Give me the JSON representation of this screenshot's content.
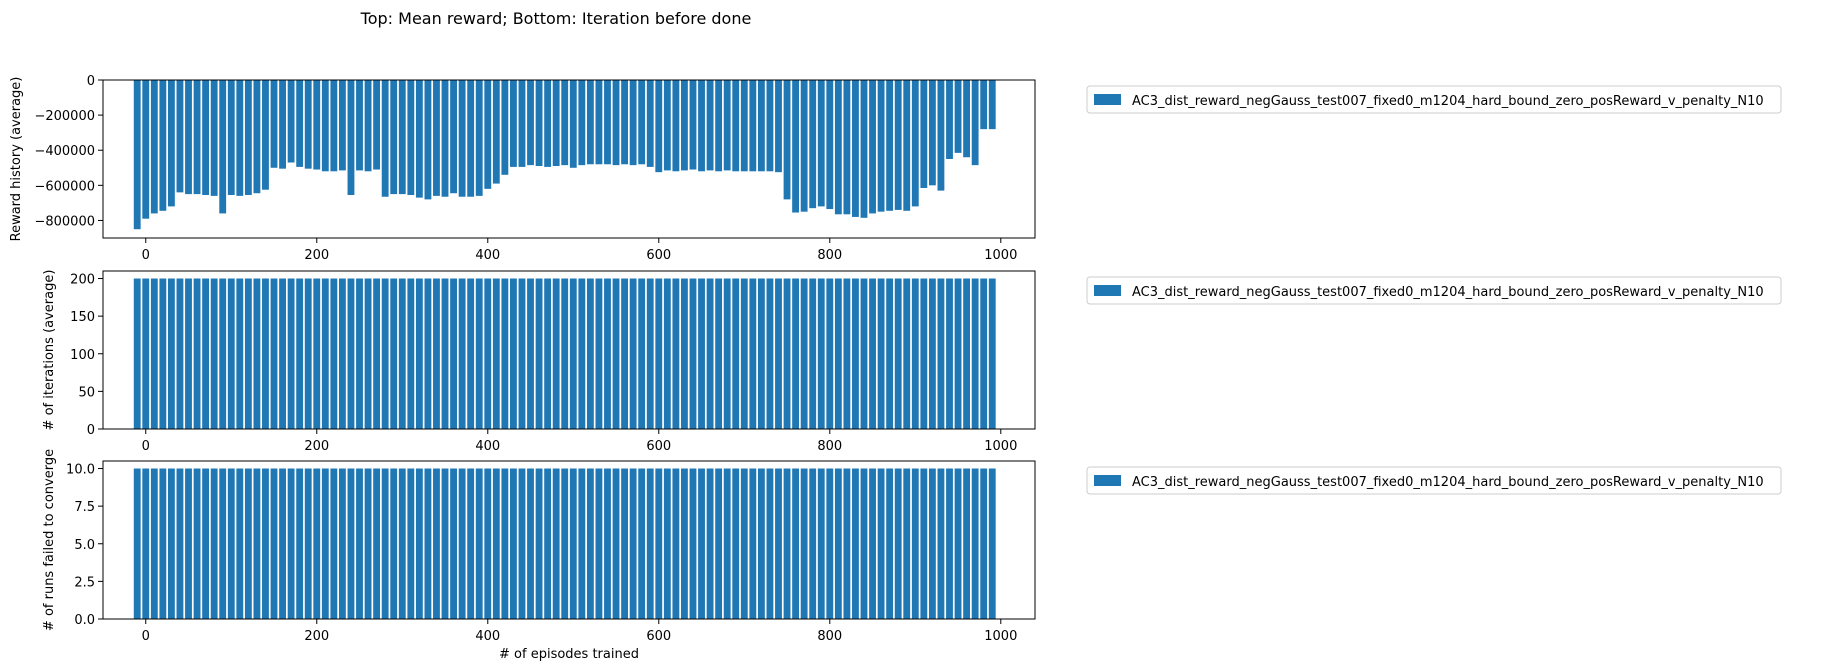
{
  "figure": {
    "title": "Top: Mean reward; Bottom: Iteration before done",
    "colors": {
      "bar": "#1f77b4",
      "axis": "#000000",
      "legend_border": "#cccccc"
    }
  },
  "chart_data": [
    {
      "type": "bar",
      "title": "",
      "xlabel": "",
      "ylabel": "Reward history (average)",
      "xlim": [
        -50,
        1040
      ],
      "ylim": [
        -900000,
        0
      ],
      "xticks": [
        "0",
        "200",
        "400",
        "600",
        "800",
        "1000"
      ],
      "yticks": [
        "0",
        "−200000",
        "−400000",
        "−600000",
        "−800000"
      ],
      "ytick_values": [
        0,
        -200000,
        -400000,
        -600000,
        -800000
      ],
      "bar_width": 8,
      "legend": {
        "label": "AC3_dist_reward_negGauss_test007_fixed0_m1204_hard_bound_zero_posReward_v_penalty_N10",
        "placement": "outside-right-top"
      },
      "x": [
        -10,
        0,
        10,
        20,
        30,
        40,
        50,
        60,
        70,
        80,
        90,
        100,
        110,
        120,
        130,
        140,
        150,
        160,
        170,
        180,
        190,
        200,
        210,
        220,
        230,
        240,
        250,
        260,
        270,
        280,
        290,
        300,
        310,
        320,
        330,
        340,
        350,
        360,
        370,
        380,
        390,
        400,
        410,
        420,
        430,
        440,
        450,
        460,
        470,
        480,
        490,
        500,
        510,
        520,
        530,
        540,
        550,
        560,
        570,
        580,
        590,
        600,
        610,
        620,
        630,
        640,
        650,
        660,
        670,
        680,
        690,
        700,
        710,
        720,
        730,
        740,
        750,
        760,
        770,
        780,
        790,
        800,
        810,
        820,
        830,
        840,
        850,
        860,
        870,
        880,
        890,
        900,
        910,
        920,
        930,
        940,
        950,
        960,
        970,
        980,
        990
      ],
      "values": [
        -850000,
        -790000,
        -760000,
        -745000,
        -720000,
        -640000,
        -650000,
        -650000,
        -655000,
        -660000,
        -760000,
        -655000,
        -660000,
        -655000,
        -645000,
        -625000,
        -500000,
        -505000,
        -470000,
        -495000,
        -505000,
        -510000,
        -520000,
        -520000,
        -515000,
        -655000,
        -515000,
        -520000,
        -510000,
        -665000,
        -650000,
        -650000,
        -655000,
        -670000,
        -680000,
        -660000,
        -665000,
        -645000,
        -665000,
        -665000,
        -660000,
        -620000,
        -590000,
        -540000,
        -495000,
        -495000,
        -485000,
        -490000,
        -495000,
        -490000,
        -485000,
        -500000,
        -485000,
        -480000,
        -480000,
        -480000,
        -485000,
        -480000,
        -485000,
        -480000,
        -495000,
        -525000,
        -515000,
        -520000,
        -515000,
        -510000,
        -520000,
        -515000,
        -520000,
        -515000,
        -520000,
        -520000,
        -520000,
        -520000,
        -520000,
        -525000,
        -680000,
        -755000,
        -750000,
        -730000,
        -720000,
        -735000,
        -765000,
        -765000,
        -780000,
        -785000,
        -760000,
        -750000,
        -745000,
        -740000,
        -745000,
        -720000,
        -615000,
        -600000,
        -630000,
        -450000,
        -415000,
        -440000,
        -485000,
        -280000,
        -280000
      ]
    },
    {
      "type": "bar",
      "title": "",
      "xlabel": "",
      "ylabel": "# of iterations (average)",
      "xlim": [
        -50,
        1040
      ],
      "ylim": [
        0,
        210
      ],
      "xticks": [
        "0",
        "200",
        "400",
        "600",
        "800",
        "1000"
      ],
      "yticks": [
        "0",
        "50",
        "100",
        "150",
        "200"
      ],
      "ytick_values": [
        0,
        50,
        100,
        150,
        200
      ],
      "bar_width": 8,
      "legend": {
        "label": "AC3_dist_reward_negGauss_test007_fixed0_m1204_hard_bound_zero_posReward_v_penalty_N10",
        "placement": "outside-right-top"
      },
      "x": [
        -10,
        0,
        10,
        20,
        30,
        40,
        50,
        60,
        70,
        80,
        90,
        100,
        110,
        120,
        130,
        140,
        150,
        160,
        170,
        180,
        190,
        200,
        210,
        220,
        230,
        240,
        250,
        260,
        270,
        280,
        290,
        300,
        310,
        320,
        330,
        340,
        350,
        360,
        370,
        380,
        390,
        400,
        410,
        420,
        430,
        440,
        450,
        460,
        470,
        480,
        490,
        500,
        510,
        520,
        530,
        540,
        550,
        560,
        570,
        580,
        590,
        600,
        610,
        620,
        630,
        640,
        650,
        660,
        670,
        680,
        690,
        700,
        710,
        720,
        730,
        740,
        750,
        760,
        770,
        780,
        790,
        800,
        810,
        820,
        830,
        840,
        850,
        860,
        870,
        880,
        890,
        900,
        910,
        920,
        930,
        940,
        950,
        960,
        970,
        980,
        990
      ],
      "values": [
        200,
        200,
        200,
        200,
        200,
        200,
        200,
        200,
        200,
        200,
        200,
        200,
        200,
        200,
        200,
        200,
        200,
        200,
        200,
        200,
        200,
        200,
        200,
        200,
        200,
        200,
        200,
        200,
        200,
        200,
        200,
        200,
        200,
        200,
        200,
        200,
        200,
        200,
        200,
        200,
        200,
        200,
        200,
        200,
        200,
        200,
        200,
        200,
        200,
        200,
        200,
        200,
        200,
        200,
        200,
        200,
        200,
        200,
        200,
        200,
        200,
        200,
        200,
        200,
        200,
        200,
        200,
        200,
        200,
        200,
        200,
        200,
        200,
        200,
        200,
        200,
        200,
        200,
        200,
        200,
        200,
        200,
        200,
        200,
        200,
        200,
        200,
        200,
        200,
        200,
        200,
        200,
        200,
        200,
        200,
        200,
        200,
        200,
        200,
        200,
        200
      ]
    },
    {
      "type": "bar",
      "title": "",
      "xlabel": "# of episodes trained",
      "ylabel": "# of runs failed to converge",
      "xlim": [
        -50,
        1040
      ],
      "ylim": [
        0,
        10.5
      ],
      "xticks": [
        "0",
        "200",
        "400",
        "600",
        "800",
        "1000"
      ],
      "yticks": [
        "0.0",
        "2.5",
        "5.0",
        "7.5",
        "10.0"
      ],
      "ytick_values": [
        0,
        2.5,
        5,
        7.5,
        10
      ],
      "bar_width": 8,
      "legend": {
        "label": "AC3_dist_reward_negGauss_test007_fixed0_m1204_hard_bound_zero_posReward_v_penalty_N10",
        "placement": "outside-right-top"
      },
      "x": [
        -10,
        0,
        10,
        20,
        30,
        40,
        50,
        60,
        70,
        80,
        90,
        100,
        110,
        120,
        130,
        140,
        150,
        160,
        170,
        180,
        190,
        200,
        210,
        220,
        230,
        240,
        250,
        260,
        270,
        280,
        290,
        300,
        310,
        320,
        330,
        340,
        350,
        360,
        370,
        380,
        390,
        400,
        410,
        420,
        430,
        440,
        450,
        460,
        470,
        480,
        490,
        500,
        510,
        520,
        530,
        540,
        550,
        560,
        570,
        580,
        590,
        600,
        610,
        620,
        630,
        640,
        650,
        660,
        670,
        680,
        690,
        700,
        710,
        720,
        730,
        740,
        750,
        760,
        770,
        780,
        790,
        800,
        810,
        820,
        830,
        840,
        850,
        860,
        870,
        880,
        890,
        900,
        910,
        920,
        930,
        940,
        950,
        960,
        970,
        980,
        990
      ],
      "values": [
        10,
        10,
        10,
        10,
        10,
        10,
        10,
        10,
        10,
        10,
        10,
        10,
        10,
        10,
        10,
        10,
        10,
        10,
        10,
        10,
        10,
        10,
        10,
        10,
        10,
        10,
        10,
        10,
        10,
        10,
        10,
        10,
        10,
        10,
        10,
        10,
        10,
        10,
        10,
        10,
        10,
        10,
        10,
        10,
        10,
        10,
        10,
        10,
        10,
        10,
        10,
        10,
        10,
        10,
        10,
        10,
        10,
        10,
        10,
        10,
        10,
        10,
        10,
        10,
        10,
        10,
        10,
        10,
        10,
        10,
        10,
        10,
        10,
        10,
        10,
        10,
        10,
        10,
        10,
        10,
        10,
        10,
        10,
        10,
        10,
        10,
        10,
        10,
        10,
        10,
        10,
        10,
        10,
        10,
        10,
        10,
        10,
        10,
        10,
        10,
        10
      ]
    }
  ]
}
